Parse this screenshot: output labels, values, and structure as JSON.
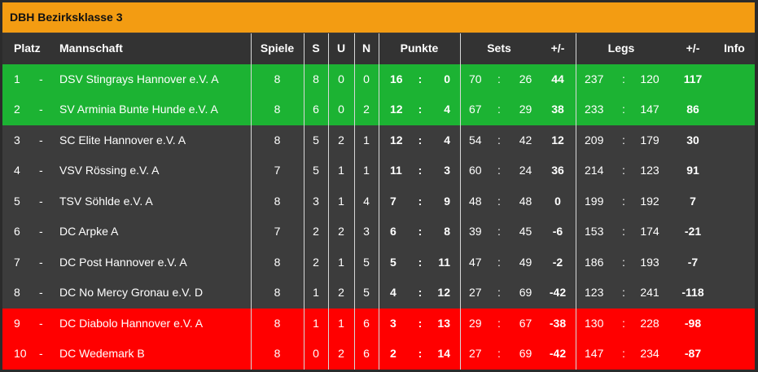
{
  "title": "DBH Bezirksklasse 3",
  "colors": {
    "header": "#f39c12",
    "promotion": "#1cb333",
    "relegation": "#ff0000",
    "neutral": "#3c3c3c"
  },
  "columns": {
    "platz": "Platz",
    "mannschaft": "Mannschaft",
    "spiele": "Spiele",
    "s": "S",
    "u": "U",
    "n": "N",
    "punkte": "Punkte",
    "sets": "Sets",
    "sets_diff": "+/-",
    "legs": "Legs",
    "legs_diff": "+/-",
    "info": "Info"
  },
  "rows": [
    {
      "platz": "1",
      "trend": "-",
      "team": "DSV Stingrays Hannover e.V. A",
      "spiele": "8",
      "s": "8",
      "u": "0",
      "n": "0",
      "p1": "16",
      "p2": "0",
      "s1": "70",
      "s2": "26",
      "sd": "44",
      "l1": "237",
      "l2": "120",
      "ld": "117",
      "status": "promotion"
    },
    {
      "platz": "2",
      "trend": "-",
      "team": "SV Arminia Bunte Hunde e.V. A",
      "spiele": "8",
      "s": "6",
      "u": "0",
      "n": "2",
      "p1": "12",
      "p2": "4",
      "s1": "67",
      "s2": "29",
      "sd": "38",
      "l1": "233",
      "l2": "147",
      "ld": "86",
      "status": "promotion"
    },
    {
      "platz": "3",
      "trend": "-",
      "team": "SC Elite Hannover e.V. A",
      "spiele": "8",
      "s": "5",
      "u": "2",
      "n": "1",
      "p1": "12",
      "p2": "4",
      "s1": "54",
      "s2": "42",
      "sd": "12",
      "l1": "209",
      "l2": "179",
      "ld": "30",
      "status": "neutral"
    },
    {
      "platz": "4",
      "trend": "-",
      "team": "VSV Rössing e.V. A",
      "spiele": "7",
      "s": "5",
      "u": "1",
      "n": "1",
      "p1": "11",
      "p2": "3",
      "s1": "60",
      "s2": "24",
      "sd": "36",
      "l1": "214",
      "l2": "123",
      "ld": "91",
      "status": "neutral"
    },
    {
      "platz": "5",
      "trend": "-",
      "team": "TSV Söhlde e.V. A",
      "spiele": "8",
      "s": "3",
      "u": "1",
      "n": "4",
      "p1": "7",
      "p2": "9",
      "s1": "48",
      "s2": "48",
      "sd": "0",
      "l1": "199",
      "l2": "192",
      "ld": "7",
      "status": "neutral"
    },
    {
      "platz": "6",
      "trend": "-",
      "team": "DC Arpke A",
      "spiele": "7",
      "s": "2",
      "u": "2",
      "n": "3",
      "p1": "6",
      "p2": "8",
      "s1": "39",
      "s2": "45",
      "sd": "-6",
      "l1": "153",
      "l2": "174",
      "ld": "-21",
      "status": "neutral"
    },
    {
      "platz": "7",
      "trend": "-",
      "team": "DC Post Hannover e.V. A",
      "spiele": "8",
      "s": "2",
      "u": "1",
      "n": "5",
      "p1": "5",
      "p2": "11",
      "s1": "47",
      "s2": "49",
      "sd": "-2",
      "l1": "186",
      "l2": "193",
      "ld": "-7",
      "status": "neutral"
    },
    {
      "platz": "8",
      "trend": "-",
      "team": "DC No Mercy Gronau e.V. D",
      "spiele": "8",
      "s": "1",
      "u": "2",
      "n": "5",
      "p1": "4",
      "p2": "12",
      "s1": "27",
      "s2": "69",
      "sd": "-42",
      "l1": "123",
      "l2": "241",
      "ld": "-118",
      "status": "neutral"
    },
    {
      "platz": "9",
      "trend": "-",
      "team": "DC Diabolo Hannover e.V. A",
      "spiele": "8",
      "s": "1",
      "u": "1",
      "n": "6",
      "p1": "3",
      "p2": "13",
      "s1": "29",
      "s2": "67",
      "sd": "-38",
      "l1": "130",
      "l2": "228",
      "ld": "-98",
      "status": "relegation"
    },
    {
      "platz": "10",
      "trend": "-",
      "team": "DC Wedemark B",
      "spiele": "8",
      "s": "0",
      "u": "2",
      "n": "6",
      "p1": "2",
      "p2": "14",
      "s1": "27",
      "s2": "69",
      "sd": "-42",
      "l1": "147",
      "l2": "234",
      "ld": "-87",
      "status": "relegation"
    }
  ]
}
